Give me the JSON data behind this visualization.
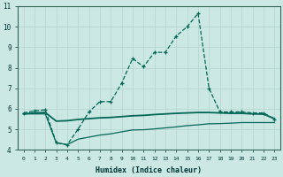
{
  "xlabel": "Humidex (Indice chaleur)",
  "background_color": "#cce8e4",
  "grid_color": "#b8d8d4",
  "line_color": "#006655",
  "xlim": [
    -0.5,
    23.5
  ],
  "ylim": [
    4,
    11
  ],
  "yticks": [
    4,
    5,
    6,
    7,
    8,
    9,
    10,
    11
  ],
  "xticks": [
    0,
    1,
    2,
    3,
    4,
    5,
    6,
    7,
    8,
    9,
    10,
    11,
    12,
    13,
    14,
    15,
    16,
    17,
    18,
    19,
    20,
    21,
    22,
    23
  ],
  "line1_x": [
    0,
    1,
    2,
    3,
    4,
    5,
    6,
    7,
    8,
    9,
    10,
    11,
    12,
    13,
    14,
    15,
    16,
    17,
    18,
    19,
    20,
    21,
    22,
    23
  ],
  "line1_y": [
    5.8,
    5.9,
    5.95,
    4.35,
    4.25,
    5.0,
    5.85,
    6.35,
    6.35,
    7.25,
    8.45,
    8.05,
    8.75,
    8.75,
    9.55,
    10.0,
    10.65,
    7.0,
    5.85,
    5.85,
    5.85,
    5.8,
    5.8,
    5.5
  ],
  "line2_x": [
    0,
    1,
    2,
    3,
    4,
    5,
    6,
    7,
    8,
    9,
    10,
    11,
    12,
    13,
    14,
    15,
    16,
    17,
    18,
    19,
    20,
    21,
    22,
    23
  ],
  "line2_y": [
    5.75,
    5.8,
    5.82,
    5.4,
    5.42,
    5.48,
    5.52,
    5.56,
    5.58,
    5.62,
    5.66,
    5.68,
    5.72,
    5.75,
    5.78,
    5.8,
    5.82,
    5.82,
    5.8,
    5.78,
    5.78,
    5.75,
    5.74,
    5.52
  ],
  "line3_x": [
    0,
    1,
    2,
    3,
    4,
    5,
    6,
    7,
    8,
    9,
    10,
    11,
    12,
    13,
    14,
    15,
    16,
    17,
    18,
    19,
    20,
    21,
    22,
    23
  ],
  "line3_y": [
    5.75,
    5.75,
    5.75,
    4.35,
    4.25,
    4.52,
    4.62,
    4.72,
    4.78,
    4.88,
    4.97,
    4.98,
    5.02,
    5.07,
    5.12,
    5.18,
    5.22,
    5.27,
    5.28,
    5.3,
    5.33,
    5.33,
    5.33,
    5.33
  ]
}
